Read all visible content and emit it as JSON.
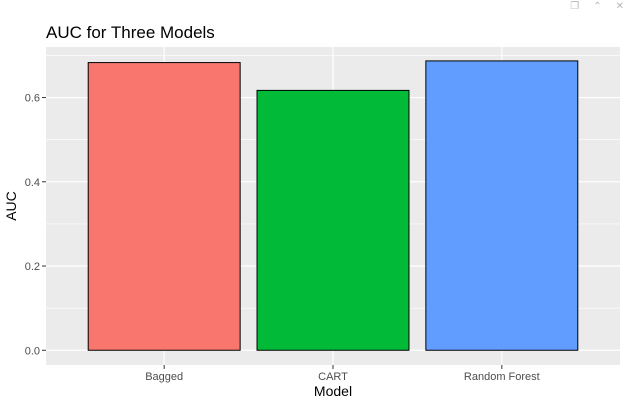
{
  "viewer_toolbar": {
    "icons": [
      "copy-icon",
      "collapse-up-icon",
      "close-icon"
    ],
    "copy_glyph": "❐",
    "collapse_glyph": "⌃",
    "close_glyph": "✕"
  },
  "colors": {
    "panel_background": "#EBEBEB",
    "grid_line": "#FFFFFF",
    "bar_outline": "#000000",
    "tick_text": "#4D4D4D"
  },
  "chart_data": {
    "type": "bar",
    "title": "AUC for Three Models",
    "xlabel": "Model",
    "ylabel": "AUC",
    "categories": [
      "Bagged",
      "CART",
      "Random Forest"
    ],
    "values": [
      0.683,
      0.617,
      0.687
    ],
    "bar_colors": [
      "#F8766D",
      "#00BA38",
      "#619CFF"
    ],
    "ylim": [
      -0.035,
      0.72
    ],
    "yticks": [
      0.0,
      0.2,
      0.4,
      0.6
    ],
    "ytick_labels": [
      "0.0",
      "0.2",
      "0.4",
      "0.6"
    ],
    "grid": true,
    "legend": "none"
  }
}
